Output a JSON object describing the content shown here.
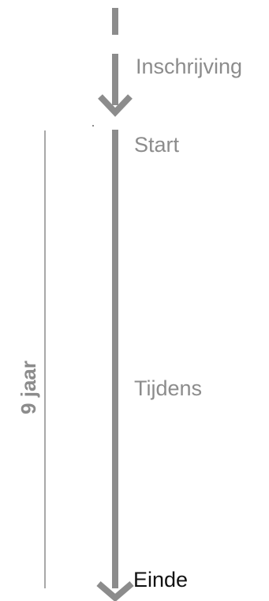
{
  "labels": {
    "enrollment": "Inschrijving",
    "start": "Start",
    "during": "Tijdens",
    "end": "Einde",
    "duration": "9 jaar"
  },
  "colors": {
    "arrow": "#8c8c8c",
    "bracket_line": "#6e6e6e",
    "label_text": "#8c8c8c",
    "end_text": "#111111",
    "duration_text": "#8c8c8c"
  }
}
